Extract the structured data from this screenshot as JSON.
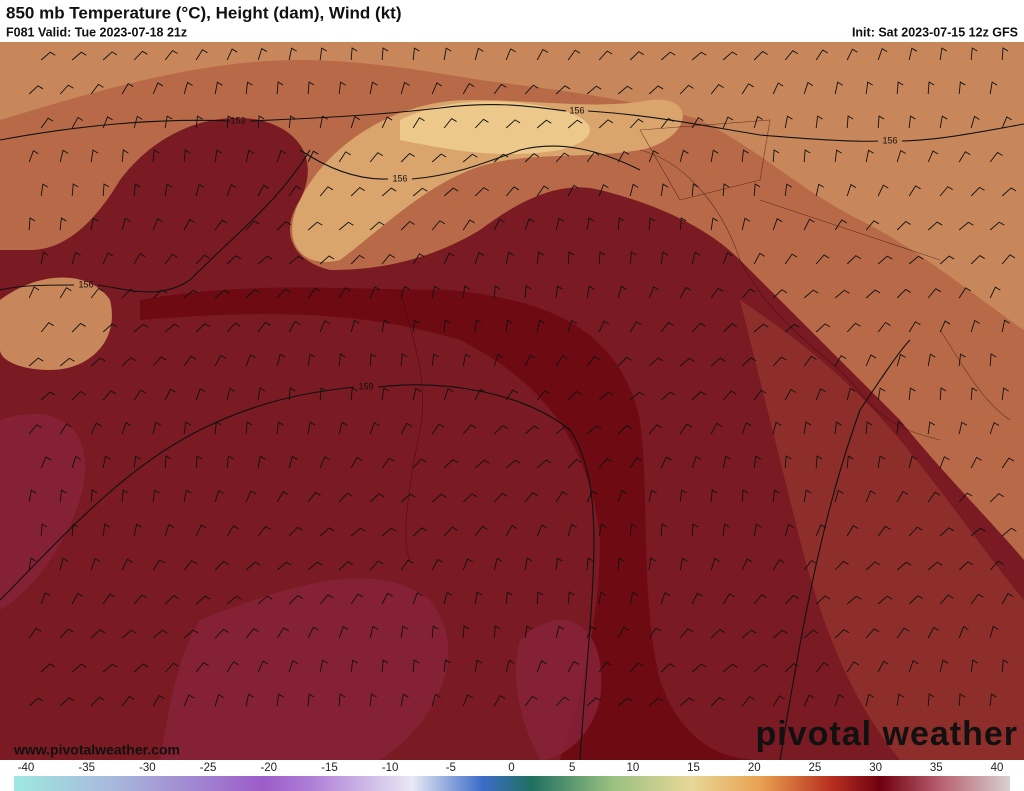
{
  "header": {
    "title": "850 mb Temperature (°C), Height (dam), Wind (kt)",
    "valid": "F081 Valid: Tue 2023-07-18 21z",
    "init": "Init: Sat 2023-07-15 12z GFS"
  },
  "map": {
    "contour_labels": [
      "153",
      "156",
      "156",
      "156",
      "156",
      "159"
    ]
  },
  "footer": {
    "website": "www.pivotalweather.com",
    "logo": "pivotal weather"
  },
  "colorbar": {
    "ticks": [
      -40,
      -35,
      -30,
      -25,
      -20,
      -15,
      -10,
      -5,
      0,
      5,
      10,
      15,
      20,
      25,
      30,
      35,
      40
    ]
  }
}
